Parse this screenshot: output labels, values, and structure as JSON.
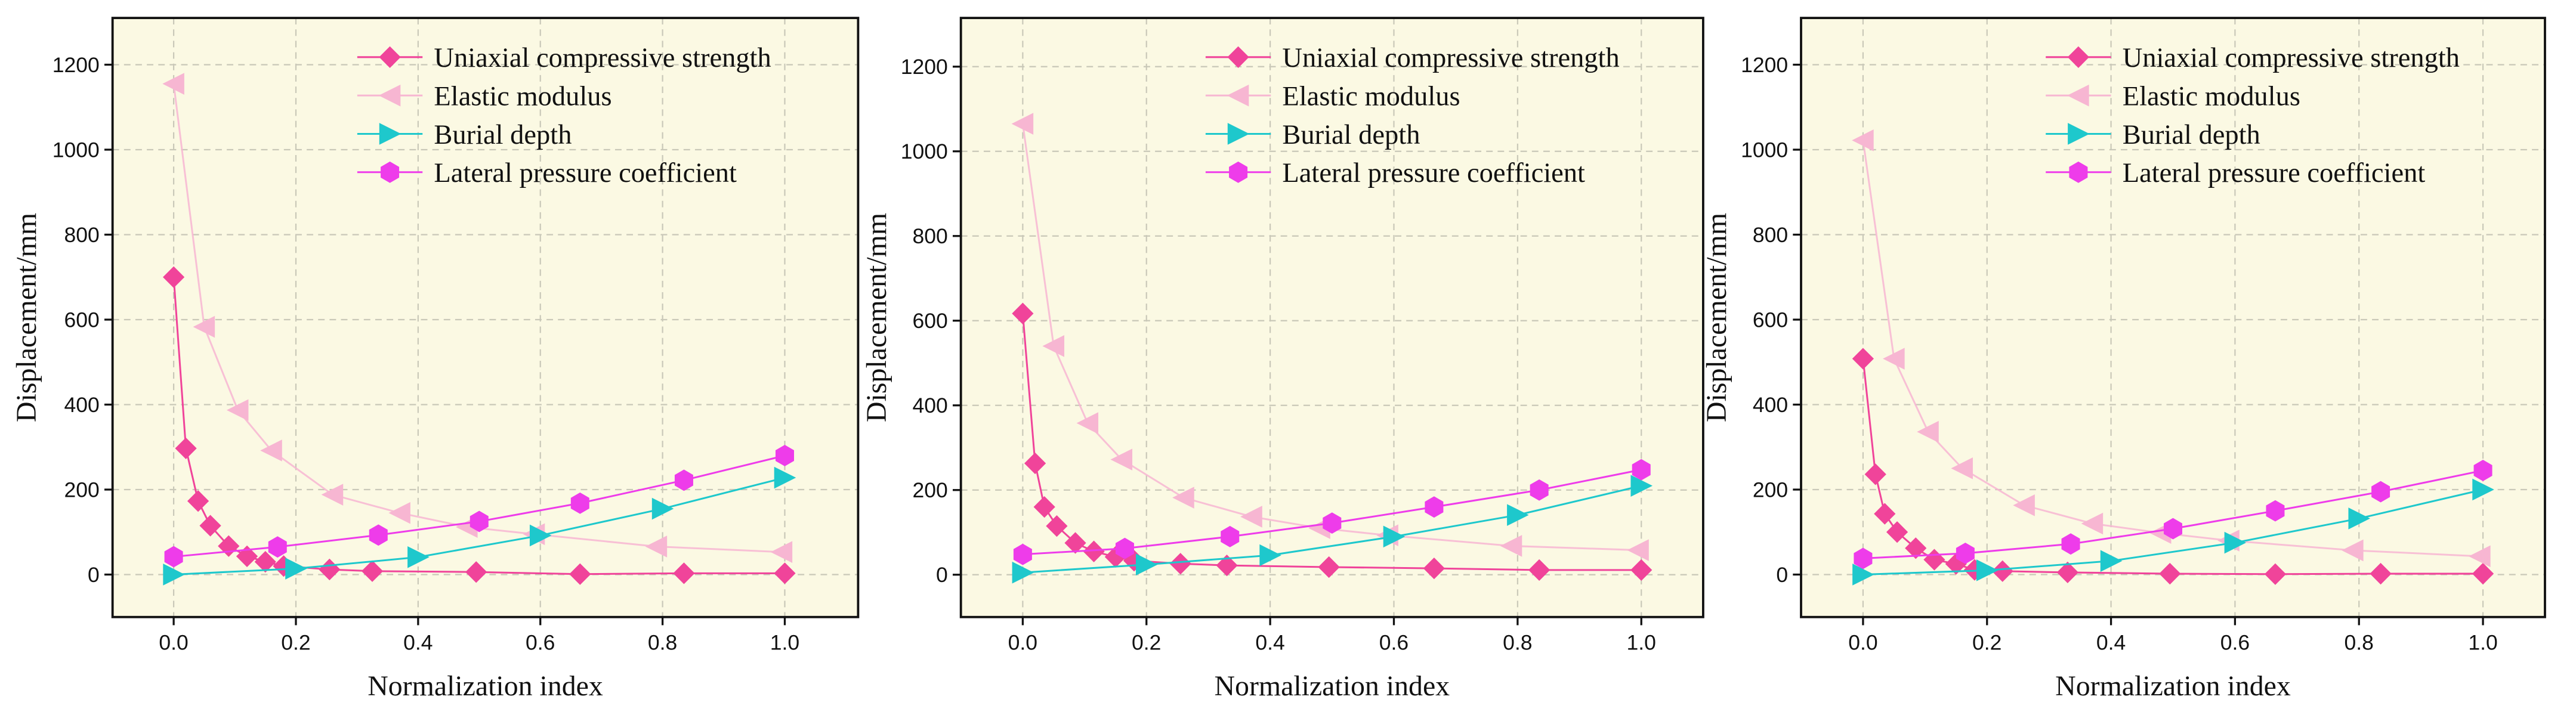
{
  "chart_data": [
    {
      "type": "scatter",
      "title": "",
      "xlabel": "Normalization index",
      "ylabel": "Displacement/mm",
      "xlim": [
        -0.1,
        1.12
      ],
      "ylim": [
        -100,
        1310
      ],
      "xticks": [
        0.0,
        0.2,
        0.4,
        0.6,
        0.8,
        1.0
      ],
      "xtick_labels": [
        "0.0",
        "0.2",
        "0.4",
        "0.6",
        "0.8",
        "1.0"
      ],
      "yticks": [
        0,
        200,
        400,
        600,
        800,
        1000,
        1200
      ],
      "ytick_labels": [
        "0",
        "200",
        "400",
        "600",
        "800",
        "1000",
        "1200"
      ],
      "grid": true,
      "legend_position": "top-right",
      "series": [
        {
          "name": "Uniaxial compressive strength",
          "marker": "diamond",
          "color": "#f0449a",
          "x": [
            0.0,
            0.02,
            0.04,
            0.06,
            0.09,
            0.12,
            0.15,
            0.18,
            0.255,
            0.325,
            0.495,
            0.665,
            0.835,
            1.0
          ],
          "y": [
            700,
            297,
            173,
            115,
            67,
            43,
            30,
            20,
            12,
            8,
            6,
            1,
            3,
            3
          ]
        },
        {
          "name": "Elastic modulus",
          "marker": "triangle-left",
          "color": "#f7b6d2",
          "x": [
            0.0,
            0.05,
            0.105,
            0.16,
            0.26,
            0.37,
            0.48,
            0.59,
            0.79,
            0.995
          ],
          "y": [
            1155,
            583,
            387,
            292,
            188,
            145,
            112,
            95,
            66,
            53
          ]
        },
        {
          "name": "Burial depth",
          "marker": "triangle-right",
          "color": "#1ec8cc",
          "x": [
            0.0,
            0.2,
            0.4,
            0.6,
            0.8,
            1.0
          ],
          "y": [
            0,
            14,
            41,
            92,
            155,
            228
          ]
        },
        {
          "name": "Lateral pressure coefficient",
          "marker": "hexagon",
          "color": "#ee3cea",
          "x": [
            0.0,
            0.17,
            0.335,
            0.5,
            0.665,
            0.835,
            1.0
          ],
          "y": [
            42,
            65,
            93,
            125,
            168,
            222,
            280
          ]
        }
      ]
    },
    {
      "type": "scatter",
      "title": "",
      "xlabel": "Normalization index",
      "ylabel": "Displacement/mm",
      "xlim": [
        -0.1,
        1.1
      ],
      "ylim": [
        -100,
        1315
      ],
      "xticks": [
        0.0,
        0.2,
        0.4,
        0.6,
        0.8,
        1.0
      ],
      "xtick_labels": [
        "0.0",
        "0.2",
        "0.4",
        "0.6",
        "0.8",
        "1.0"
      ],
      "yticks": [
        0,
        200,
        400,
        600,
        800,
        1000,
        1200
      ],
      "ytick_labels": [
        "0",
        "200",
        "400",
        "600",
        "800",
        "1000",
        "1200"
      ],
      "grid": true,
      "legend_position": "top-right",
      "series": [
        {
          "name": "Uniaxial compressive strength",
          "marker": "diamond",
          "color": "#f0449a",
          "x": [
            0.0,
            0.02,
            0.035,
            0.055,
            0.085,
            0.115,
            0.15,
            0.18,
            0.255,
            0.33,
            0.495,
            0.665,
            0.835,
            1.0
          ],
          "y": [
            617,
            263,
            160,
            115,
            75,
            55,
            42,
            33,
            26,
            22,
            18,
            15,
            11,
            11
          ]
        },
        {
          "name": "Elastic modulus",
          "marker": "triangle-left",
          "color": "#f7b6d2",
          "x": [
            0.0,
            0.05,
            0.105,
            0.16,
            0.26,
            0.37,
            0.48,
            0.59,
            0.79,
            0.995
          ],
          "y": [
            1065,
            540,
            358,
            272,
            182,
            137,
            110,
            93,
            68,
            58
          ]
        },
        {
          "name": "Burial depth",
          "marker": "triangle-right",
          "color": "#1ec8cc",
          "x": [
            0.0,
            0.2,
            0.4,
            0.6,
            0.8,
            1.0
          ],
          "y": [
            5,
            24,
            46,
            90,
            141,
            210
          ]
        },
        {
          "name": "Lateral pressure coefficient",
          "marker": "hexagon",
          "color": "#ee3cea",
          "x": [
            0.0,
            0.165,
            0.335,
            0.5,
            0.665,
            0.835,
            1.0
          ],
          "y": [
            48,
            62,
            90,
            122,
            160,
            200,
            248
          ]
        }
      ]
    },
    {
      "type": "scatter",
      "title": "",
      "xlabel": "Normalization index",
      "ylabel": "Displacement/mm",
      "xlim": [
        -0.1,
        1.1
      ],
      "ylim": [
        -100,
        1310
      ],
      "xticks": [
        0.0,
        0.2,
        0.4,
        0.6,
        0.8,
        1.0
      ],
      "xtick_labels": [
        "0.0",
        "0.2",
        "0.4",
        "0.6",
        "0.8",
        "1.0"
      ],
      "yticks": [
        0,
        200,
        400,
        600,
        800,
        1000,
        1200
      ],
      "ytick_labels": [
        "0",
        "200",
        "400",
        "600",
        "800",
        "1000",
        "1200"
      ],
      "grid": true,
      "legend_position": "top-right",
      "series": [
        {
          "name": "Uniaxial compressive strength",
          "marker": "diamond",
          "color": "#f0449a",
          "x": [
            0.0,
            0.02,
            0.035,
            0.055,
            0.085,
            0.115,
            0.15,
            0.18,
            0.225,
            0.33,
            0.495,
            0.665,
            0.835,
            1.0
          ],
          "y": [
            508,
            236,
            143,
            100,
            62,
            35,
            25,
            11,
            8,
            5,
            2,
            1,
            2,
            2
          ]
        },
        {
          "name": "Elastic modulus",
          "marker": "triangle-left",
          "color": "#f7b6d2",
          "x": [
            0.0,
            0.05,
            0.105,
            0.16,
            0.26,
            0.37,
            0.48,
            0.59,
            0.79,
            0.995
          ],
          "y": [
            1022,
            508,
            336,
            250,
            163,
            120,
            98,
            80,
            57,
            43
          ]
        },
        {
          "name": "Burial depth",
          "marker": "triangle-right",
          "color": "#1ec8cc",
          "x": [
            0.0,
            0.2,
            0.4,
            0.6,
            0.8,
            1.0
          ],
          "y": [
            0,
            10,
            32,
            75,
            132,
            200
          ]
        },
        {
          "name": "Lateral pressure coefficient",
          "marker": "hexagon",
          "color": "#ee3cea",
          "x": [
            0.0,
            0.165,
            0.335,
            0.5,
            0.665,
            0.835,
            1.0
          ],
          "y": [
            38,
            50,
            72,
            108,
            150,
            195,
            245
          ]
        }
      ]
    }
  ]
}
